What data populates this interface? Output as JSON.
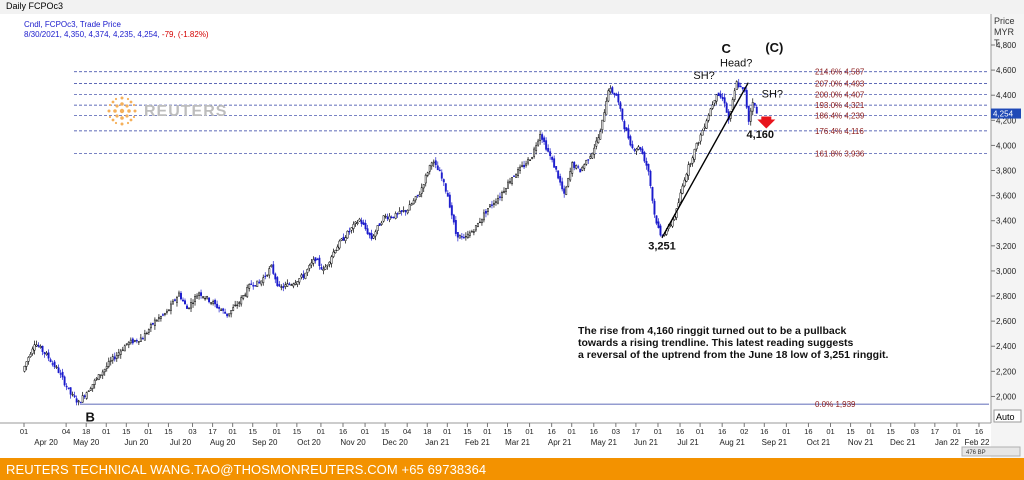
{
  "window": {
    "title": "Daily FCPOc3"
  },
  "header": {
    "line1": "Cndl, FCPOc3, Trade Price",
    "ohlc_prefix": "8/30/2021, 4,350, 4,374, 4,235, 4,254,",
    "change": "-79, (-1.82%)"
  },
  "watermark": {
    "text": "REUTERS"
  },
  "axis": {
    "unit_line1": "Price",
    "unit_line2": "MYR",
    "unit_line3": "T",
    "auto_label": "Auto",
    "scroll_label": "476 BP"
  },
  "footer": {
    "text": "REUTERS TECHNICAL  WANG.TAO@THOSMONREUTERS.COM  +65 69738364"
  },
  "colors": {
    "up": "#000000",
    "down": "#1a1acc",
    "fib_line": "#2a3aa0",
    "fib_text": "#8a1a1a",
    "footer": "#f39200",
    "change": "#d40000",
    "current_price_bg": "#1f49b7"
  },
  "chart_data": {
    "type": "candlestick",
    "instrument": "FCPOc3",
    "ylim": [
      1900,
      4800
    ],
    "yticks": [
      2000,
      2200,
      2400,
      2600,
      2800,
      3000,
      3200,
      3400,
      3600,
      3800,
      4000,
      4200,
      4400,
      4600,
      4800
    ],
    "ytick_labels": [
      "2,000",
      "2,200",
      "2,400",
      "2,600",
      "2,800",
      "3,000",
      "3,200",
      "3,400",
      "3,600",
      "3,800",
      "4,000",
      "4,200",
      "4,400",
      "4,600",
      "4,800"
    ],
    "current_price": {
      "value": 4254,
      "label": "4,254"
    },
    "x_day_ticks": [
      {
        "label": "01",
        "i": 0
      },
      {
        "label": "04",
        "i": 21
      },
      {
        "label": "18",
        "i": 31
      },
      {
        "label": "01",
        "i": 41
      },
      {
        "label": "15",
        "i": 51
      },
      {
        "label": "01",
        "i": 62
      },
      {
        "label": "15",
        "i": 72
      },
      {
        "label": "03",
        "i": 84
      },
      {
        "label": "17",
        "i": 94
      },
      {
        "label": "01",
        "i": 104
      },
      {
        "label": "15",
        "i": 114
      },
      {
        "label": "01",
        "i": 126
      },
      {
        "label": "15",
        "i": 136
      },
      {
        "label": "01",
        "i": 148
      },
      {
        "label": "16",
        "i": 159
      },
      {
        "label": "01",
        "i": 170
      },
      {
        "label": "15",
        "i": 180
      },
      {
        "label": "04",
        "i": 191
      },
      {
        "label": "18",
        "i": 201
      },
      {
        "label": "01",
        "i": 211
      },
      {
        "label": "15",
        "i": 221
      },
      {
        "label": "01",
        "i": 231
      },
      {
        "label": "15",
        "i": 241
      },
      {
        "label": "01",
        "i": 252
      },
      {
        "label": "16",
        "i": 263
      },
      {
        "label": "01",
        "i": 273
      },
      {
        "label": "16",
        "i": 284
      },
      {
        "label": "03",
        "i": 295
      },
      {
        "label": "17",
        "i": 305
      },
      {
        "label": "01",
        "i": 316
      },
      {
        "label": "16",
        "i": 327
      },
      {
        "label": "01",
        "i": 337
      },
      {
        "label": "16",
        "i": 348
      },
      {
        "label": "02",
        "i": 359
      },
      {
        "label": "16",
        "i": 369
      },
      {
        "label": "01",
        "i": 380
      },
      {
        "label": "16",
        "i": 391
      },
      {
        "label": "01",
        "i": 402
      },
      {
        "label": "15",
        "i": 412
      },
      {
        "label": "01",
        "i": 422
      },
      {
        "label": "15",
        "i": 432
      },
      {
        "label": "03",
        "i": 444
      },
      {
        "label": "17",
        "i": 454
      },
      {
        "label": "01",
        "i": 465
      },
      {
        "label": "16",
        "i": 476
      }
    ],
    "x_month_ticks": [
      {
        "label": "Apr 20",
        "i": 11
      },
      {
        "label": "May 20",
        "i": 31
      },
      {
        "label": "Jun 20",
        "i": 56
      },
      {
        "label": "Jul 20",
        "i": 78
      },
      {
        "label": "Aug 20",
        "i": 99
      },
      {
        "label": "Sep 20",
        "i": 120
      },
      {
        "label": "Oct 20",
        "i": 142
      },
      {
        "label": "Nov 20",
        "i": 164
      },
      {
        "label": "Dec 20",
        "i": 185
      },
      {
        "label": "Jan 21",
        "i": 206
      },
      {
        "label": "Feb 21",
        "i": 226
      },
      {
        "label": "Mar 21",
        "i": 246
      },
      {
        "label": "Apr 21",
        "i": 267
      },
      {
        "label": "May 21",
        "i": 289
      },
      {
        "label": "Jun 21",
        "i": 310
      },
      {
        "label": "Jul 21",
        "i": 331
      },
      {
        "label": "Aug 21",
        "i": 353
      },
      {
        "label": "Sep 21",
        "i": 374
      },
      {
        "label": "Oct 21",
        "i": 396
      },
      {
        "label": "Nov 21",
        "i": 417
      },
      {
        "label": "Dec 21",
        "i": 438
      },
      {
        "label": "Jan 22",
        "i": 460
      },
      {
        "label": "Feb 22",
        "i": 475
      }
    ],
    "total_periods": 480,
    "bars": 366,
    "waypoints": [
      {
        "i": 0,
        "p": 2200
      },
      {
        "i": 6,
        "p": 2430
      },
      {
        "i": 12,
        "p": 2330
      },
      {
        "i": 18,
        "p": 2200
      },
      {
        "i": 24,
        "p": 2020
      },
      {
        "i": 28,
        "p": 1950
      },
      {
        "i": 34,
        "p": 2080
      },
      {
        "i": 44,
        "p": 2280
      },
      {
        "i": 52,
        "p": 2420
      },
      {
        "i": 60,
        "p": 2470
      },
      {
        "i": 66,
        "p": 2600
      },
      {
        "i": 72,
        "p": 2670
      },
      {
        "i": 78,
        "p": 2820
      },
      {
        "i": 82,
        "p": 2700
      },
      {
        "i": 88,
        "p": 2830
      },
      {
        "i": 96,
        "p": 2730
      },
      {
        "i": 102,
        "p": 2650
      },
      {
        "i": 108,
        "p": 2750
      },
      {
        "i": 114,
        "p": 2900
      },
      {
        "i": 118,
        "p": 2900
      },
      {
        "i": 124,
        "p": 3030
      },
      {
        "i": 128,
        "p": 2860
      },
      {
        "i": 134,
        "p": 2900
      },
      {
        "i": 140,
        "p": 2960
      },
      {
        "i": 146,
        "p": 3100
      },
      {
        "i": 150,
        "p": 3000
      },
      {
        "i": 156,
        "p": 3180
      },
      {
        "i": 162,
        "p": 3300
      },
      {
        "i": 168,
        "p": 3410
      },
      {
        "i": 174,
        "p": 3260
      },
      {
        "i": 180,
        "p": 3430
      },
      {
        "i": 186,
        "p": 3440
      },
      {
        "i": 192,
        "p": 3490
      },
      {
        "i": 198,
        "p": 3620
      },
      {
        "i": 204,
        "p": 3880
      },
      {
        "i": 208,
        "p": 3780
      },
      {
        "i": 212,
        "p": 3600
      },
      {
        "i": 216,
        "p": 3300
      },
      {
        "i": 220,
        "p": 3250
      },
      {
        "i": 226,
        "p": 3350
      },
      {
        "i": 232,
        "p": 3500
      },
      {
        "i": 238,
        "p": 3600
      },
      {
        "i": 244,
        "p": 3750
      },
      {
        "i": 250,
        "p": 3840
      },
      {
        "i": 254,
        "p": 3920
      },
      {
        "i": 258,
        "p": 4100
      },
      {
        "i": 262,
        "p": 3950
      },
      {
        "i": 266,
        "p": 3800
      },
      {
        "i": 270,
        "p": 3600
      },
      {
        "i": 274,
        "p": 3850
      },
      {
        "i": 278,
        "p": 3800
      },
      {
        "i": 284,
        "p": 3950
      },
      {
        "i": 288,
        "p": 4100
      },
      {
        "i": 292,
        "p": 4450
      },
      {
        "i": 296,
        "p": 4400
      },
      {
        "i": 300,
        "p": 4150
      },
      {
        "i": 304,
        "p": 3980
      },
      {
        "i": 308,
        "p": 3980
      },
      {
        "i": 312,
        "p": 3800
      },
      {
        "i": 315,
        "p": 3450
      },
      {
        "i": 318,
        "p": 3280
      },
      {
        "i": 322,
        "p": 3340
      },
      {
        "i": 326,
        "p": 3480
      },
      {
        "i": 330,
        "p": 3740
      },
      {
        "i": 334,
        "p": 3920
      },
      {
        "i": 338,
        "p": 4080
      },
      {
        "i": 342,
        "p": 4250
      },
      {
        "i": 346,
        "p": 4420
      },
      {
        "i": 350,
        "p": 4350
      },
      {
        "i": 352,
        "p": 4200
      },
      {
        "i": 356,
        "p": 4500
      },
      {
        "i": 360,
        "p": 4420
      },
      {
        "i": 362,
        "p": 4200
      },
      {
        "i": 364,
        "p": 4360
      },
      {
        "i": 366,
        "p": 4254
      }
    ],
    "fib_levels": [
      {
        "value": 4587,
        "label": "214.6% 4,587"
      },
      {
        "value": 4493,
        "label": "207.0% 4,493"
      },
      {
        "value": 4407,
        "label": "200.0% 4,407"
      },
      {
        "value": 4321,
        "label": "193.0% 4,321"
      },
      {
        "value": 4239,
        "label": "186.4% 4,239"
      },
      {
        "value": 4116,
        "label": "176.4% 4,116"
      },
      {
        "value": 3936,
        "label": "161.8% 3,936"
      },
      {
        "value": 1939,
        "label": "0.0% 1,939"
      }
    ],
    "trendline": [
      {
        "i": 318,
        "p": 3265
      },
      {
        "i": 361,
        "p": 4500
      }
    ],
    "annotations": [
      {
        "text": "B",
        "i": 33,
        "p": 1800,
        "size": 13,
        "bold": true
      },
      {
        "text": "3,251",
        "i": 318,
        "p": 3170,
        "size": 11,
        "bold": true
      },
      {
        "text": "4,160",
        "i": 367,
        "p": 4060,
        "size": 11,
        "bold": true
      },
      {
        "text": "SH?",
        "i": 339,
        "p": 4530,
        "size": 11,
        "bold": false
      },
      {
        "text": "Head?",
        "i": 355,
        "p": 4630,
        "size": 11,
        "bold": false
      },
      {
        "text": "SH?",
        "i": 373,
        "p": 4380,
        "size": 11,
        "bold": false
      },
      {
        "text": "C",
        "i": 350,
        "p": 4735,
        "size": 13,
        "bold": true
      },
      {
        "text": "(C)",
        "i": 374,
        "p": 4745,
        "size": 13,
        "bold": true
      }
    ],
    "commentary": [
      "The rise from 4,160 ringgit turned out to be a pullback",
      "towards a rising trendline. This latest reading suggests",
      "a reversal of the uptrend from the June 18 low of 3,251 ringgit."
    ]
  }
}
